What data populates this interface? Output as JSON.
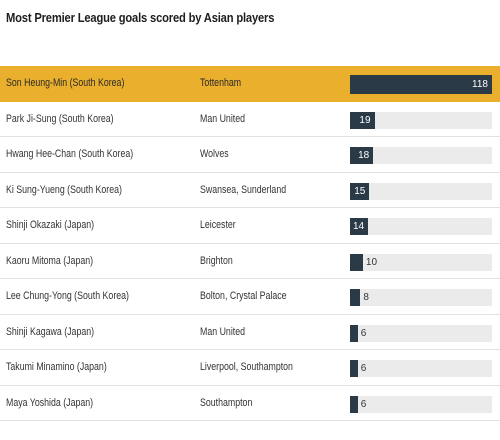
{
  "chart_data": {
    "type": "table",
    "title": "Most Premier League goals scored by Asian players",
    "bar_max": 110,
    "colors": {
      "highlight": "#e9af2d",
      "bar": "#2a3b47",
      "track": "#ebebeb"
    },
    "rows": [
      {
        "player": "Son Heung-Min (South Korea)",
        "club": "Tottenham",
        "goals": 118,
        "highlight": true
      },
      {
        "player": "Park Ji-Sung (South Korea)",
        "club": "Man United",
        "goals": 19
      },
      {
        "player": "Hwang Hee-Chan (South Korea)",
        "club": "Wolves",
        "goals": 18
      },
      {
        "player": "Ki Sung-Yueng (South Korea)",
        "club": "Swansea, Sunderland",
        "goals": 15
      },
      {
        "player": "Shinji Okazaki (Japan)",
        "club": "Leicester",
        "goals": 14
      },
      {
        "player": "Kaoru Mitoma (Japan)",
        "club": "Brighton",
        "goals": 10
      },
      {
        "player": "Lee Chung-Yong (South Korea)",
        "club": "Bolton, Crystal Palace",
        "goals": 8
      },
      {
        "player": "Shinji Kagawa (Japan)",
        "club": "Man United",
        "goals": 6
      },
      {
        "player": "Takumi Minamino (Japan)",
        "club": "Liverpool, Southampton",
        "goals": 6
      },
      {
        "player": "Maya Yoshida (Japan)",
        "club": "Southampton",
        "goals": 6
      }
    ]
  }
}
